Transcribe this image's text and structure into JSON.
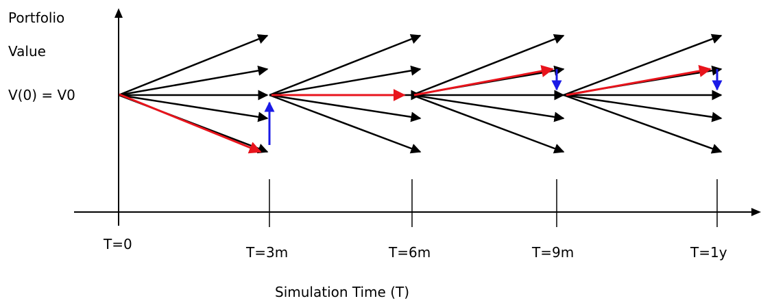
{
  "y_axis": {
    "label_line1": "Portfolio",
    "label_line2": "Value",
    "v0_label": "V(0) = V0"
  },
  "x_axis": {
    "title": "Simulation Time (T)",
    "ticks": [
      "T=0",
      "T=3m",
      "T=6m",
      "T=9m",
      "T=1y"
    ]
  },
  "colors": {
    "scenario_arrow": "#000000",
    "path_arrow": "#e8141c",
    "rebalance_arrow": "#1a1ae6",
    "axis": "#000000"
  },
  "diagram": {
    "branches_per_step": 5,
    "selected_path": [
      {
        "from": "T=0",
        "to": "T=3m",
        "branch": "lowest"
      },
      {
        "from": "T=3m",
        "to": "T=6m",
        "branch": "middle"
      },
      {
        "from": "T=6m",
        "to": "T=9m",
        "branch": "upper-middle"
      },
      {
        "from": "T=9m",
        "to": "T=1y",
        "branch": "upper-middle"
      }
    ],
    "rebalance_arrows": [
      {
        "at": "T=3m",
        "direction": "up"
      },
      {
        "at": "T=9m",
        "direction": "down"
      },
      {
        "at": "T=1y",
        "direction": "down"
      }
    ]
  }
}
